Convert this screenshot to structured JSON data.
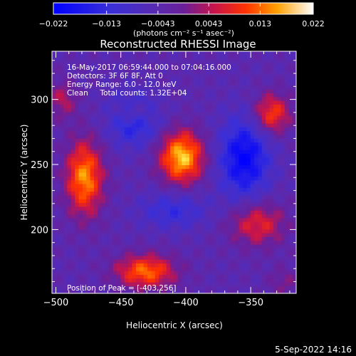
{
  "chart_data": {
    "type": "heatmap",
    "title": "Reconstructed RHESSI Image",
    "xlabel": "Heliocentric X (arcsec)",
    "ylabel": "Heliocentric Y (arcsec)",
    "xlim": [
      -503,
      -315
    ],
    "ylim": [
      151,
      337
    ],
    "x_ticks": [
      -500,
      -450,
      -400,
      -350
    ],
    "y_ticks": [
      200,
      250,
      300
    ],
    "colorbar": {
      "range": [
        -0.022,
        0.022
      ],
      "tick_labels": [
        "-0.022",
        "-0.013",
        "-0.0043",
        "0.0043",
        "0.013",
        "0.022"
      ],
      "unit_label": "(photons cm⁻² s⁻¹ asec⁻²)"
    },
    "info_lines": [
      "16-May-2017 06:59:44.000 to 07:04:16.000",
      "Detectors: 3F 6F 8F, Att 0",
      "Energy Range: 6.0 - 12.0 keV",
      "Clean     Total counts: 1.32E+04"
    ],
    "peak_label": "Position of Peak = [-403,256]",
    "footer_date": "5-Sep-2022 14:16",
    "sources": [
      {
        "x": -403,
        "y": 256,
        "sx": 12,
        "sy": 14,
        "amp": 0.022
      },
      {
        "x": -478,
        "y": 240,
        "sx": 10,
        "sy": 20,
        "amp": 0.019
      },
      {
        "x": -431,
        "y": 168,
        "sx": 16,
        "sy": 9,
        "amp": 0.017
      },
      {
        "x": -334,
        "y": 289,
        "sx": 10,
        "sy": 11,
        "amp": 0.015
      },
      {
        "x": -345,
        "y": 205,
        "sx": 15,
        "sy": 12,
        "amp": 0.012
      },
      {
        "x": -495,
        "y": 300,
        "sx": 8,
        "sy": 10,
        "amp": 0.008
      },
      {
        "x": -440,
        "y": 290,
        "sx": 10,
        "sy": 6,
        "amp": 0.009
      },
      {
        "x": -325,
        "y": 160,
        "sx": 8,
        "sy": 8,
        "amp": 0.005
      },
      {
        "x": -440,
        "y": 285,
        "sx": 14,
        "sy": 14,
        "amp": -0.013
      },
      {
        "x": -355,
        "y": 255,
        "sx": 14,
        "sy": 22,
        "amp": -0.017
      },
      {
        "x": -410,
        "y": 215,
        "sx": 18,
        "sy": 10,
        "amp": -0.009
      }
    ]
  }
}
